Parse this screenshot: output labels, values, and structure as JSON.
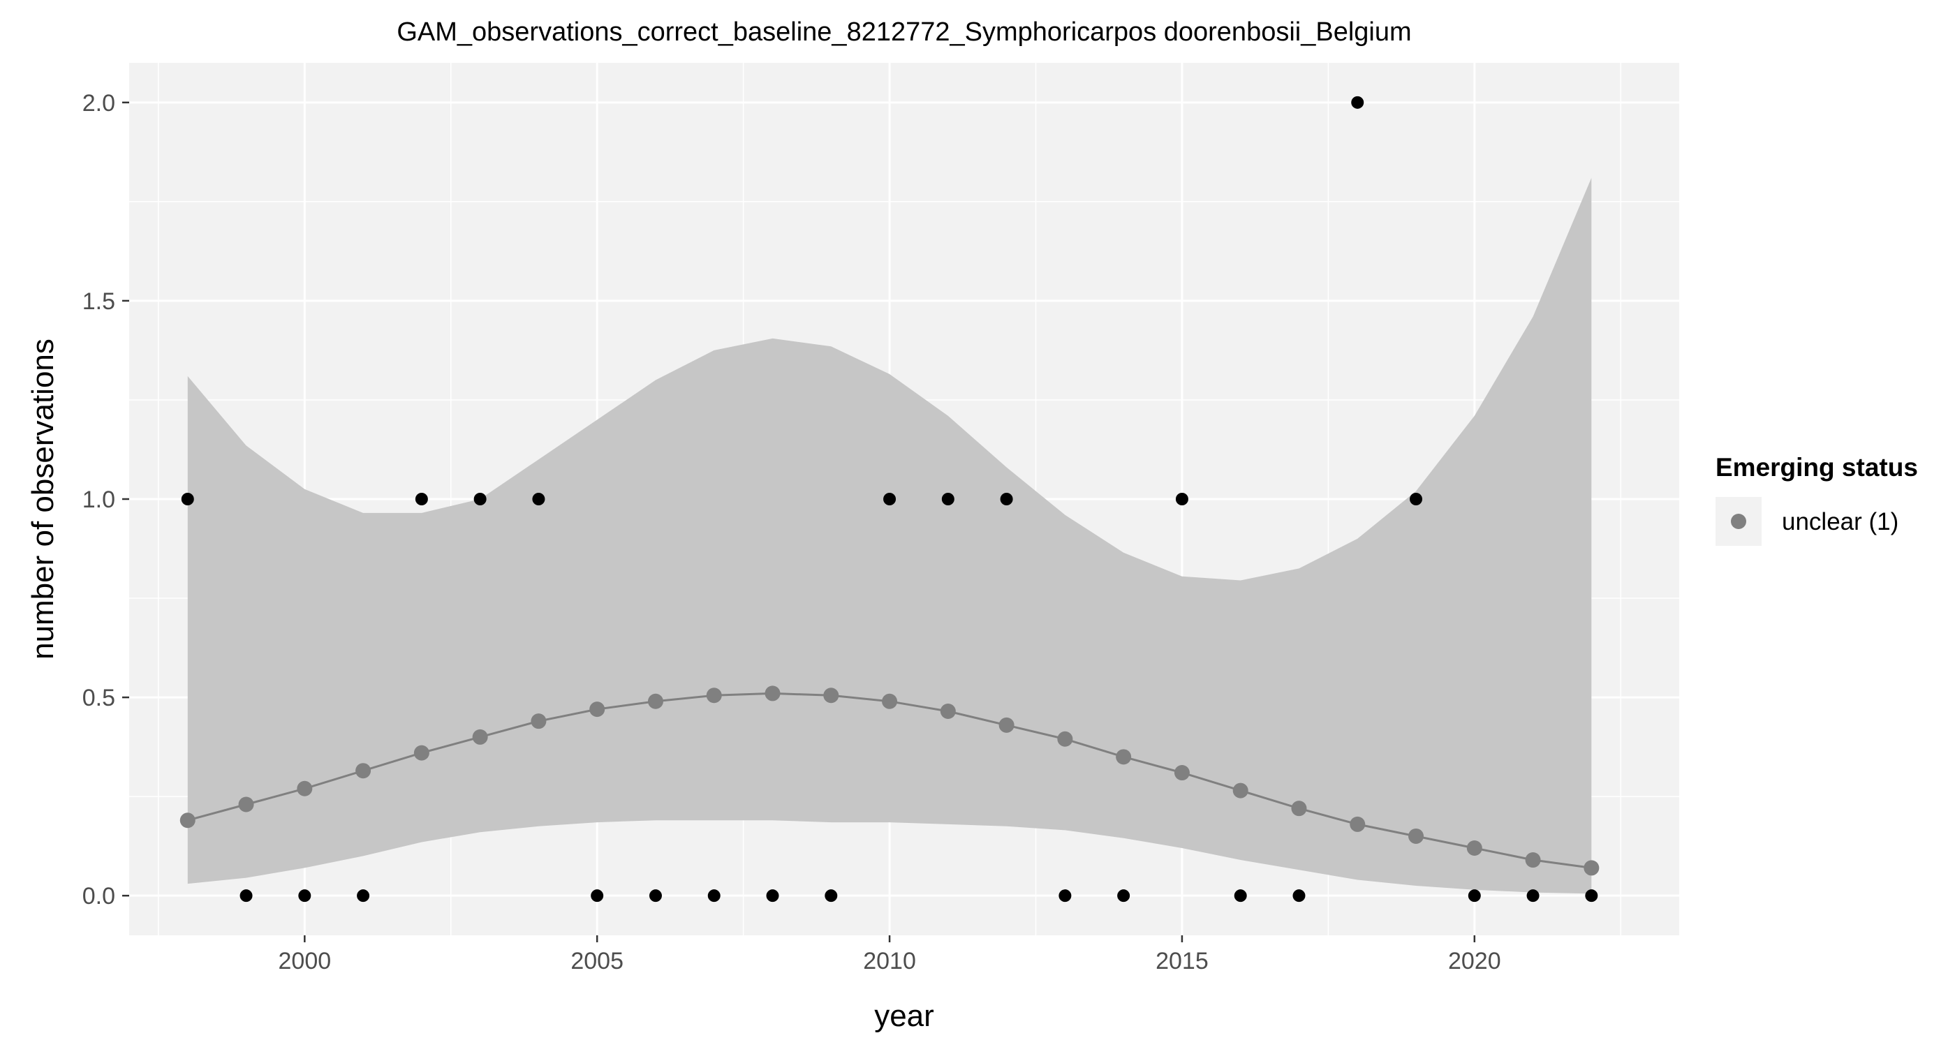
{
  "chart_data": {
    "type": "scatter",
    "title": "GAM_observations_correct_baseline_8212772_Symphoricarpos doorenbosii_Belgium",
    "xlabel": "year",
    "ylabel": "number of observations",
    "xlim": [
      1997,
      2023.5
    ],
    "ylim": [
      -0.1,
      2.1
    ],
    "x_ticks": [
      2000,
      2005,
      2010,
      2015,
      2020
    ],
    "x_tick_labels": [
      "2000",
      "2005",
      "2010",
      "2015",
      "2020"
    ],
    "y_ticks": [
      0,
      0.5,
      1,
      1.5,
      2
    ],
    "y_tick_labels": [
      "0.0",
      "0.5",
      "1.0",
      "1.5",
      "2.0"
    ],
    "grid": true,
    "legend": {
      "title": "Emerging status",
      "position": "right",
      "entries": [
        {
          "label": "unclear (1)",
          "color": "#808080"
        }
      ]
    },
    "observations": {
      "x": [
        1998,
        1999,
        2000,
        2001,
        2002,
        2003,
        2004,
        2005,
        2006,
        2007,
        2008,
        2009,
        2010,
        2011,
        2012,
        2013,
        2014,
        2015,
        2016,
        2017,
        2018,
        2019,
        2020,
        2021,
        2022
      ],
      "y": [
        1,
        0,
        0,
        0,
        1,
        1,
        1,
        0,
        0,
        0,
        0,
        0,
        1,
        1,
        1,
        0,
        0,
        1,
        0,
        0,
        2,
        1,
        0,
        0,
        0
      ],
      "color": "#000000"
    },
    "fit": {
      "x": [
        1998,
        1999,
        2000,
        2001,
        2002,
        2003,
        2004,
        2005,
        2006,
        2007,
        2008,
        2009,
        2010,
        2011,
        2012,
        2013,
        2014,
        2015,
        2016,
        2017,
        2018,
        2019,
        2020,
        2021,
        2022
      ],
      "y": [
        0.19,
        0.23,
        0.27,
        0.315,
        0.36,
        0.4,
        0.44,
        0.47,
        0.49,
        0.505,
        0.51,
        0.505,
        0.49,
        0.465,
        0.43,
        0.395,
        0.35,
        0.31,
        0.265,
        0.22,
        0.18,
        0.15,
        0.12,
        0.09,
        0.07
      ],
      "lower": [
        0.03,
        0.045,
        0.07,
        0.1,
        0.135,
        0.16,
        0.175,
        0.185,
        0.19,
        0.19,
        0.19,
        0.185,
        0.185,
        0.18,
        0.175,
        0.165,
        0.145,
        0.12,
        0.09,
        0.065,
        0.04,
        0.025,
        0.015,
        0.008,
        0.005
      ],
      "upper": [
        1.31,
        1.135,
        1.025,
        0.965,
        0.965,
        1.0,
        1.1,
        1.2,
        1.3,
        1.375,
        1.405,
        1.385,
        1.315,
        1.21,
        1.08,
        0.96,
        0.865,
        0.805,
        0.795,
        0.825,
        0.9,
        1.02,
        1.21,
        1.46,
        1.81
      ],
      "color": "#808080",
      "band_color": "#c6c6c6"
    }
  }
}
